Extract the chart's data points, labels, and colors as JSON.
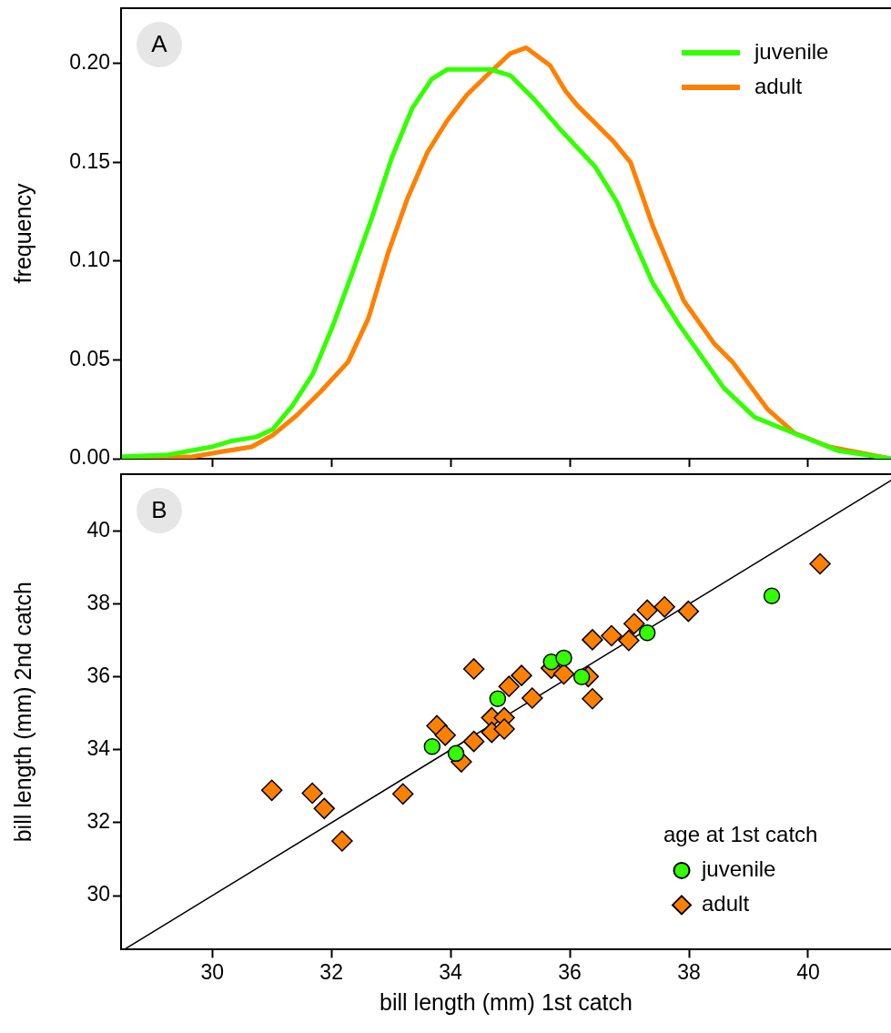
{
  "chart_data": [
    {
      "type": "line",
      "ylabel": "frequency",
      "annotations": [
        "A"
      ],
      "legend": "top right",
      "tick_labels": "y",
      "line_style": "solid",
      "marker": "none",
      "xlim": [
        28.47,
        41.39
      ],
      "xticks": [
        {
          "value": 30,
          "label": null
        },
        {
          "value": 32,
          "label": null
        },
        {
          "value": 34,
          "label": null
        },
        {
          "value": 36,
          "label": null
        },
        {
          "value": 38,
          "label": null
        },
        {
          "value": 40,
          "label": null
        }
      ],
      "ylim": [
        0,
        0.228
      ],
      "yticks": [
        {
          "value": 0,
          "label": "0.00"
        },
        {
          "value": 0.05,
          "label": "0.05"
        },
        {
          "value": 0.1,
          "label": "0.10"
        },
        {
          "value": 0.15,
          "label": "0.15"
        },
        {
          "value": 0.2,
          "label": "0.20"
        }
      ],
      "series": [
        {
          "name": "juvenile",
          "color": "#33ff00",
          "x": [
            28.5,
            29.26,
            30.0,
            30.33,
            30.74,
            31.02,
            31.35,
            31.69,
            32.02,
            32.35,
            32.68,
            33.01,
            33.35,
            33.68,
            33.94,
            34.67,
            35.0,
            35.4,
            35.83,
            36.42,
            36.79,
            37.39,
            37.83,
            38.58,
            39.1,
            39.84,
            40.51,
            41.39
          ],
          "values": [
            0.001,
            0.002,
            0.006,
            0.009,
            0.011,
            0.015,
            0.027,
            0.043,
            0.067,
            0.094,
            0.122,
            0.152,
            0.177,
            0.192,
            0.197,
            0.197,
            0.194,
            0.182,
            0.167,
            0.148,
            0.13,
            0.089,
            0.068,
            0.036,
            0.021,
            0.012,
            0.004,
            0.0
          ]
        },
        {
          "name": "adult",
          "color": "#ff8000",
          "x": [
            28.5,
            29.67,
            30.25,
            30.66,
            31.02,
            31.42,
            31.82,
            32.28,
            32.62,
            32.95,
            33.28,
            33.61,
            33.94,
            34.27,
            34.61,
            35.0,
            35.27,
            35.67,
            35.93,
            36.12,
            36.72,
            37.02,
            37.39,
            37.91,
            38.43,
            38.73,
            39.32,
            39.77,
            40.36,
            41.39
          ],
          "values": [
            0.0,
            0.001,
            0.004,
            0.006,
            0.012,
            0.022,
            0.034,
            0.049,
            0.071,
            0.104,
            0.132,
            0.155,
            0.171,
            0.184,
            0.194,
            0.205,
            0.208,
            0.199,
            0.186,
            0.179,
            0.161,
            0.15,
            0.118,
            0.08,
            0.058,
            0.049,
            0.025,
            0.013,
            0.006,
            0.0
          ]
        }
      ]
    },
    {
      "type": "scatter",
      "xlabel": "bill length (mm) 1st catch",
      "ylabel": "bill length (mm) 2nd catch",
      "annotations": [
        "B"
      ],
      "legend": "bottom right",
      "legend_title": "age at 1st catch",
      "xlim": [
        28.47,
        41.39
      ],
      "xticks": [
        30,
        32,
        34,
        36,
        38,
        40
      ],
      "ylim": [
        28.52,
        41.56
      ],
      "yticks": [
        30,
        32,
        34,
        36,
        38,
        40
      ],
      "series": [
        {
          "type": "line",
          "color": "#000000",
          "x": [
            28.52,
            41.39
          ],
          "values": [
            28.52,
            41.39
          ]
        },
        {
          "name": "juvenile",
          "color": "#33ff00",
          "marker": "circle",
          "x": [
            33.69,
            34.09,
            34.79,
            35.69,
            35.9,
            36.2,
            37.3,
            39.39
          ],
          "values": [
            34.09,
            33.9,
            35.4,
            36.41,
            36.52,
            36.0,
            37.21,
            38.22
          ]
        },
        {
          "name": "adult",
          "color": "#ff8000",
          "marker": "diamond",
          "x": [
            31.0,
            31.68,
            31.88,
            32.18,
            33.2,
            33.77,
            33.91,
            34.18,
            34.39,
            34.39,
            34.69,
            34.69,
            34.9,
            34.9,
            34.98,
            35.19,
            35.37,
            35.69,
            35.9,
            36.31,
            36.38,
            36.38,
            36.7,
            36.99,
            37.08,
            37.3,
            37.59,
            37.99,
            40.2
          ],
          "values": [
            32.89,
            32.81,
            32.39,
            31.5,
            32.79,
            34.66,
            34.4,
            33.67,
            34.23,
            36.22,
            34.88,
            34.48,
            34.88,
            34.57,
            35.74,
            36.04,
            35.42,
            36.24,
            36.08,
            36.01,
            35.4,
            37.02,
            37.13,
            37.0,
            37.46,
            37.83,
            37.92,
            37.8,
            39.1
          ]
        }
      ]
    }
  ]
}
